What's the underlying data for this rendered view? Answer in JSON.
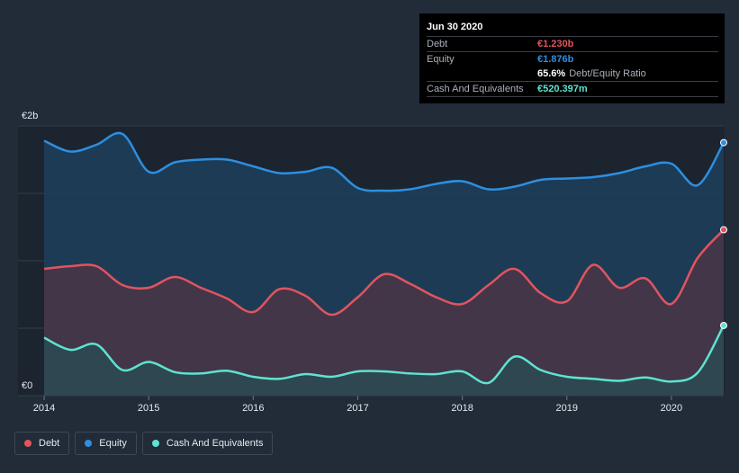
{
  "chart_data": {
    "type": "area",
    "title": "",
    "currency_note": "EUR",
    "ylim": [
      0,
      2000
    ],
    "y_ticks": [
      {
        "value": 2000,
        "label": "€2b"
      },
      {
        "value": 0,
        "label": "€0"
      }
    ],
    "x_ticks": [
      {
        "value": 2014.0,
        "label": "2014"
      },
      {
        "value": 2015.0,
        "label": "2015"
      },
      {
        "value": 2016.0,
        "label": "2016"
      },
      {
        "value": 2017.0,
        "label": "2017"
      },
      {
        "value": 2018.0,
        "label": "2018"
      },
      {
        "value": 2019.0,
        "label": "2019"
      },
      {
        "value": 2020.0,
        "label": "2020"
      }
    ],
    "xlim": [
      2014.0,
      2020.5
    ],
    "series": [
      {
        "name": "Equity",
        "color": "#2d8fe0",
        "fill": "#1f3f5c",
        "x": [
          2014.0,
          2014.25,
          2014.5,
          2014.75,
          2015.0,
          2015.25,
          2015.5,
          2015.75,
          2016.0,
          2016.25,
          2016.5,
          2016.75,
          2017.0,
          2017.25,
          2017.5,
          2017.75,
          2018.0,
          2018.25,
          2018.5,
          2018.75,
          2019.0,
          2019.25,
          2019.5,
          2019.75,
          2020.0,
          2020.25,
          2020.5
        ],
        "values": [
          1890,
          1810,
          1860,
          1940,
          1660,
          1730,
          1750,
          1750,
          1700,
          1650,
          1660,
          1690,
          1540,
          1520,
          1530,
          1570,
          1590,
          1530,
          1550,
          1600,
          1610,
          1620,
          1650,
          1700,
          1720,
          1560,
          1876
        ]
      },
      {
        "name": "Debt",
        "color": "#e2545f",
        "fill": "#4a3648",
        "x": [
          2014.0,
          2014.25,
          2014.5,
          2014.75,
          2015.0,
          2015.25,
          2015.5,
          2015.75,
          2016.0,
          2016.25,
          2016.5,
          2016.75,
          2017.0,
          2017.25,
          2017.5,
          2017.75,
          2018.0,
          2018.25,
          2018.5,
          2018.75,
          2019.0,
          2019.25,
          2019.5,
          2019.75,
          2020.0,
          2020.25,
          2020.5
        ],
        "values": [
          940,
          960,
          960,
          820,
          800,
          880,
          800,
          720,
          620,
          790,
          740,
          600,
          730,
          900,
          830,
          730,
          680,
          820,
          940,
          760,
          700,
          970,
          800,
          870,
          680,
          1020,
          1230
        ]
      },
      {
        "name": "Cash And Equivalents",
        "color": "#5ee3d0",
        "fill": "#2a4a52",
        "x": [
          2014.0,
          2014.25,
          2014.5,
          2014.75,
          2015.0,
          2015.25,
          2015.5,
          2015.75,
          2016.0,
          2016.25,
          2016.5,
          2016.75,
          2017.0,
          2017.25,
          2017.5,
          2017.75,
          2018.0,
          2018.25,
          2018.5,
          2018.75,
          2019.0,
          2019.25,
          2019.5,
          2019.75,
          2020.0,
          2020.25,
          2020.5
        ],
        "values": [
          430,
          340,
          380,
          190,
          250,
          175,
          165,
          185,
          140,
          125,
          160,
          140,
          180,
          180,
          165,
          160,
          180,
          95,
          290,
          190,
          140,
          125,
          110,
          135,
          105,
          170,
          520.397
        ]
      }
    ]
  },
  "tooltip": {
    "date": "Jun 30 2020",
    "debt_label": "Debt",
    "debt_value": "€1.230b",
    "equity_label": "Equity",
    "equity_value": "€1.876b",
    "ratio_value": "65.6%",
    "ratio_label": "Debt/Equity Ratio",
    "cash_label": "Cash And Equivalents",
    "cash_value": "€520.397m"
  },
  "legend": {
    "debt": "Debt",
    "equity": "Equity",
    "cash": "Cash And Equivalents"
  },
  "colors": {
    "debt": "#e2545f",
    "equity": "#2d8fe0",
    "cash": "#5ee3d0"
  }
}
